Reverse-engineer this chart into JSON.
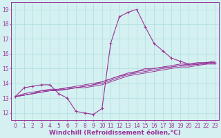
{
  "x": [
    0,
    1,
    2,
    3,
    4,
    5,
    6,
    7,
    8,
    9,
    10,
    11,
    12,
    13,
    14,
    15,
    16,
    17,
    18,
    19,
    20,
    21,
    22,
    23
  ],
  "line_main": [
    13.1,
    13.7,
    13.8,
    13.9,
    13.9,
    13.3,
    13.0,
    12.1,
    12.0,
    11.9,
    12.3,
    16.7,
    18.5,
    18.8,
    19.0,
    17.8,
    16.7,
    16.2,
    15.7,
    15.5,
    15.3,
    15.3,
    15.4,
    15.4
  ],
  "line_band1": [
    13.1,
    13.2,
    13.3,
    13.4,
    13.5,
    13.5,
    13.6,
    13.7,
    13.7,
    13.8,
    13.9,
    14.1,
    14.3,
    14.5,
    14.6,
    14.7,
    14.8,
    14.9,
    15.0,
    15.1,
    15.1,
    15.2,
    15.3,
    15.3
  ],
  "line_band2": [
    13.1,
    13.2,
    13.3,
    13.4,
    13.5,
    13.6,
    13.6,
    13.7,
    13.8,
    13.9,
    14.0,
    14.2,
    14.4,
    14.6,
    14.7,
    14.8,
    14.9,
    15.0,
    15.1,
    15.2,
    15.2,
    15.3,
    15.3,
    15.4
  ],
  "line_band3": [
    13.1,
    13.2,
    13.3,
    13.5,
    13.5,
    13.6,
    13.7,
    13.7,
    13.8,
    13.9,
    14.1,
    14.3,
    14.5,
    14.6,
    14.8,
    14.9,
    15.0,
    15.1,
    15.1,
    15.2,
    15.3,
    15.3,
    15.4,
    15.4
  ],
  "line_band4": [
    13.1,
    13.3,
    13.4,
    13.5,
    13.6,
    13.6,
    13.7,
    13.8,
    13.9,
    14.0,
    14.1,
    14.3,
    14.5,
    14.7,
    14.8,
    15.0,
    15.0,
    15.1,
    15.2,
    15.3,
    15.3,
    15.4,
    15.4,
    15.5
  ],
  "line_color": "#993399",
  "bg_color": "#d4f0f0",
  "grid_color": "#b0dede",
  "ylim": [
    11.5,
    19.5
  ],
  "yticks": [
    12,
    13,
    14,
    15,
    16,
    17,
    18,
    19
  ],
  "xlim": [
    -0.5,
    23.5
  ],
  "xlabel": "Windchill (Refroidissement éolien,°C)",
  "xlabel_fontsize": 6.5,
  "tick_fontsize": 5.5
}
